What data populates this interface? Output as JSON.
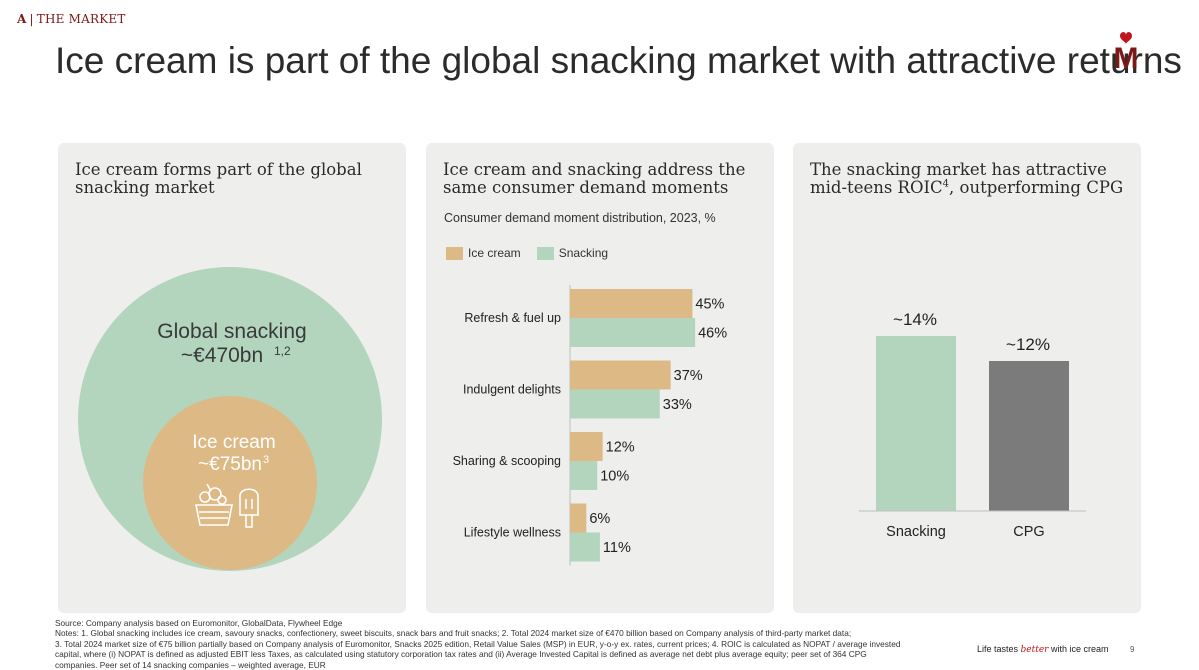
{
  "header": {
    "section_letter": "A",
    "section_name": "THE MARKET",
    "title": "Ice cream is part of the global snacking market with attractive returns",
    "logo_letter": "M"
  },
  "colors": {
    "ice_cream": "#ddb986",
    "snacking": "#b3d5bd",
    "cpg": "#7b7b7b",
    "accent": "#7a1a17"
  },
  "panel1": {
    "title": "Ice cream forms part of the global snacking market",
    "outer_label": "Global snacking",
    "outer_value": "~€470bn",
    "outer_sup": "1,2",
    "inner_label": "Ice cream",
    "inner_value": "~€75bn",
    "inner_sup": "3",
    "icons": [
      "sundae-icon",
      "popsicle-icon"
    ]
  },
  "panel2": {
    "title": "Ice cream and snacking address the same consumer demand moments",
    "subtitle": "Consumer demand moment distribution, 2023, %"
  },
  "panel3": {
    "title_main": "The snacking market has attractive mid-teens ROIC",
    "title_sup": "4",
    "title_end": ", outperforming CPG"
  },
  "chart_data": [
    {
      "type": "bar",
      "orientation": "horizontal",
      "title": "Consumer demand moment distribution, 2023, %",
      "categories": [
        "Refresh & fuel up",
        "Indulgent delights",
        "Sharing & scooping",
        "Lifestyle wellness"
      ],
      "series": [
        {
          "name": "Ice cream",
          "values": [
            45,
            37,
            12,
            6
          ],
          "labels": [
            "45%",
            "37%",
            "12%",
            "6%"
          ]
        },
        {
          "name": "Snacking",
          "values": [
            46,
            33,
            10,
            11
          ],
          "labels": [
            "46%",
            "33%",
            "10%",
            "11%"
          ]
        }
      ],
      "xlim": [
        0,
        50
      ],
      "legend": "top-left"
    },
    {
      "type": "bar",
      "title": "The snacking market has attractive mid-teens ROIC, outperforming CPG",
      "categories": [
        "Snacking",
        "CPG"
      ],
      "values": [
        14,
        12
      ],
      "labels": [
        "~14%",
        "~12%"
      ],
      "ylim": [
        0,
        16
      ]
    }
  ],
  "footer": {
    "source": "Source: Company analysis based on Euromonitor, GlobalData, Flywheel Edge",
    "notes_1": "Notes: 1. Global snacking includes ice cream, savoury snacks, confectionery, sweet biscuits, snack bars and fruit snacks; 2. Total 2024 market size of €470 billion based on Company analysis of third-party market data;",
    "notes_2": "3. Total 2024 market size of €75 billion partially based on Company analysis of Euromonitor, Snacks 2025 edition, Retail Value Sales (MSP) in EUR, y-o-y ex. rates, current prices; 4. ROIC is calculated as NOPAT / average invested",
    "notes_3": "capital, where (i) NOPAT is defined as adjusted EBIT less Taxes, as calculated using statutory corporation tax rates and (ii) Average Invested Capital is defined as average net debt plus average equity; peer set of 364 CPG",
    "notes_4": "companies. Peer set of 14 snacking companies – weighted average, EUR",
    "tagline_pre": "Life tastes ",
    "tagline_em": "better",
    "tagline_post": " with ice cream",
    "page": "9"
  }
}
